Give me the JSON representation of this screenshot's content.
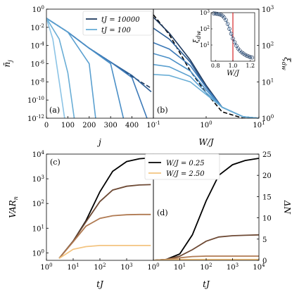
{
  "chart_data": [
    {
      "id": "a",
      "type": "line",
      "panel_label": "(a)",
      "xlabel": "j",
      "ylabel": "n̄_j",
      "xlim": [
        0,
        500
      ],
      "ylim": [
        1e-12,
        1
      ],
      "yscale": "log",
      "xticks": [
        0,
        100,
        200,
        300,
        400
      ],
      "yticks": [
        1,
        0.01,
        0.0001,
        1e-06,
        1e-08,
        1e-10,
        1e-12
      ],
      "ytick_labels": [
        "10^0",
        "10^-2",
        "10^-4",
        "10^-6",
        "10^-8",
        "10^-10",
        "10^-12"
      ],
      "legend": [
        {
          "label": "tJ = 10000",
          "color": "#1f3a5f"
        },
        {
          "label": "tJ = 100",
          "color": "#6aaed6"
        }
      ],
      "series": [
        {
          "color": "#1f3a5f",
          "dashed": true,
          "x": [
            0,
            100,
            200,
            300,
            400,
            490
          ],
          "y": [
            0.1,
            0.003,
            5e-05,
            1.5e-06,
            4e-08,
            2e-09
          ]
        },
        {
          "color": "#2a5d95",
          "x": [
            0,
            100,
            200,
            300,
            400,
            490
          ],
          "y": [
            0.1,
            0.003,
            5e-05,
            1.5e-06,
            5e-08,
            8e-10
          ]
        },
        {
          "color": "#3d7ab8",
          "x": [
            0,
            100,
            200,
            300,
            400,
            470
          ],
          "y": [
            0.1,
            0.003,
            5e-05,
            1.5e-06,
            3e-08,
            1e-12
          ]
        },
        {
          "color": "#4a8fc7",
          "x": [
            0,
            100,
            200,
            300,
            360
          ],
          "y": [
            0.1,
            0.003,
            5e-05,
            1e-06,
            1e-12
          ]
        },
        {
          "color": "#5ba0d0",
          "x": [
            0,
            100,
            200,
            230
          ],
          "y": [
            0.1,
            0.003,
            1e-06,
            1e-12
          ]
        },
        {
          "color": "#6aaed6",
          "x": [
            0,
            60,
            100,
            130
          ],
          "y": [
            0.1,
            0.0005,
            1e-07,
            1e-12
          ]
        },
        {
          "color": "#8cc4e6",
          "x": [
            0,
            30,
            60,
            85
          ],
          "y": [
            0.1,
            0.0005,
            1e-08,
            1e-12
          ]
        }
      ]
    },
    {
      "id": "b",
      "type": "line",
      "panel_label": "(b)",
      "xlabel": "W/J",
      "ylabel": "ξ_dw",
      "xscale": "log",
      "yscale": "log",
      "xlim": [
        0.1,
        10
      ],
      "ylim": [
        1,
        1000
      ],
      "xtick_labels": [
        "10^-1",
        "10^0",
        "10^1"
      ],
      "ytick_labels": [
        "10^0",
        "10^1",
        "10^2",
        "10^3"
      ],
      "series": [
        {
          "color": "#000000",
          "dashed": true,
          "x": [
            0.1,
            0.2,
            0.5,
            1,
            2,
            5,
            10
          ],
          "y": [
            700,
            200,
            20,
            5,
            1.5,
            1,
            1
          ]
        },
        {
          "color": "#1f3a5f",
          "x": [
            0.1,
            0.2,
            0.5,
            1,
            2,
            5,
            10
          ],
          "y": [
            600,
            220,
            40,
            8,
            2,
            1.1,
            1
          ]
        },
        {
          "color": "#2a5d95",
          "x": [
            0.1,
            0.2,
            0.5,
            1,
            2,
            5,
            10
          ],
          "y": [
            300,
            150,
            35,
            7,
            2,
            1.1,
            1
          ]
        },
        {
          "color": "#3d7ab8",
          "x": [
            0.1,
            0.2,
            0.5,
            1,
            2,
            5,
            10
          ],
          "y": [
            120,
            80,
            28,
            7,
            2,
            1.1,
            1
          ]
        },
        {
          "color": "#4a8fc7",
          "x": [
            0.1,
            0.2,
            0.5,
            1,
            2,
            5,
            10
          ],
          "y": [
            60,
            45,
            20,
            6,
            2,
            1.1,
            1
          ]
        },
        {
          "color": "#5ba0d0",
          "x": [
            0.1,
            0.2,
            0.5,
            1,
            2,
            5,
            10
          ],
          "y": [
            30,
            26,
            14,
            5,
            2,
            1.1,
            1
          ]
        },
        {
          "color": "#6aaed6",
          "x": [
            0.1,
            0.2,
            0.5,
            1,
            2,
            5,
            10
          ],
          "y": [
            16,
            15,
            10,
            4.5,
            2,
            1.1,
            1
          ]
        }
      ],
      "inset": {
        "xlabel": "W/J",
        "ylabel": "ξ_dw",
        "xlim": [
          0.75,
          1.25
        ],
        "ylim": [
          1,
          1000
        ],
        "xtick_labels": [
          "0.8",
          "1.0",
          "1.2"
        ],
        "ytick_labels": [
          "10^1",
          "10^2",
          "10^3"
        ],
        "vline_x": 1.0,
        "points": {
          "x": [
            0.78,
            0.8,
            0.82,
            0.84,
            0.86,
            0.88,
            0.9,
            0.92,
            0.94,
            0.96,
            0.98,
            1.0,
            1.02,
            1.04,
            1.06,
            1.08,
            1.1,
            1.12,
            1.14,
            1.16,
            1.18,
            1.2,
            1.22
          ],
          "y": [
            900,
            880,
            850,
            800,
            750,
            650,
            500,
            350,
            200,
            100,
            50,
            25,
            15,
            9,
            6,
            4.5,
            3.5,
            3,
            2.5,
            2.2,
            2,
            1.8,
            1.7
          ]
        }
      }
    },
    {
      "id": "c",
      "type": "line",
      "panel_label": "(c)",
      "xlabel": "tJ",
      "ylabel": "VAR_n",
      "xscale": "log",
      "yscale": "log",
      "xlim": [
        1,
        10000
      ],
      "ylim": [
        0.5,
        10000
      ],
      "xtick_labels": [
        "10^0",
        "10^1",
        "10^2",
        "10^3"
      ],
      "ytick_labels": [
        "10^0",
        "10^1",
        "10^2",
        "10^3",
        "10^4"
      ],
      "series": [
        {
          "color": "#000000",
          "x": [
            3,
            10,
            30,
            100,
            300,
            1000,
            3000,
            8000
          ],
          "y": [
            0.6,
            3,
            20,
            300,
            2000,
            5000,
            6500,
            7000
          ]
        },
        {
          "color": "#6e4a35",
          "x": [
            3,
            10,
            30,
            100,
            300,
            1000,
            3000,
            8000
          ],
          "y": [
            0.6,
            3,
            18,
            120,
            350,
            500,
            560,
            580
          ]
        },
        {
          "color": "#b07a52",
          "x": [
            3,
            10,
            30,
            100,
            300,
            1000,
            3000,
            8000
          ],
          "y": [
            0.6,
            2.8,
            12,
            25,
            32,
            35,
            36,
            36
          ]
        },
        {
          "color": "#f3c480",
          "x": [
            3,
            10,
            30,
            100,
            300,
            1000,
            3000,
            8000
          ],
          "y": [
            0.6,
            1.4,
            1.8,
            2,
            2,
            2,
            2,
            2
          ]
        }
      ]
    },
    {
      "id": "d",
      "type": "line",
      "panel_label": "(d)",
      "xlabel": "tJ",
      "ylabel": "ΔN",
      "xscale": "log",
      "xlim": [
        1,
        10000
      ],
      "ylim": [
        0,
        25
      ],
      "xtick_labels": [
        "10^0",
        "10^1",
        "10^2",
        "10^3",
        "10^4"
      ],
      "yticks": [
        0,
        5,
        10,
        15,
        20,
        25
      ],
      "legend": [
        {
          "label": "W/J = 0.25",
          "color": "#000000"
        },
        {
          "label": "W/J = 2.50",
          "color": "#f3c480"
        }
      ],
      "series": [
        {
          "color": "#000000",
          "x": [
            1,
            3,
            10,
            30,
            100,
            300,
            1000,
            3000,
            10000
          ],
          "y": [
            0,
            0.2,
            1.5,
            6,
            14,
            20,
            22.5,
            23.5,
            24
          ]
        },
        {
          "color": "#6e4a35",
          "x": [
            1,
            3,
            10,
            30,
            100,
            300,
            1000,
            3000,
            10000
          ],
          "y": [
            0,
            0.2,
            1,
            2.5,
            4.5,
            5.5,
            5.8,
            5.9,
            6
          ]
        },
        {
          "color": "#b07a52",
          "x": [
            1,
            3,
            10,
            30,
            100,
            300,
            1000,
            3000,
            10000
          ],
          "y": [
            0,
            0.2,
            0.6,
            0.9,
            1,
            1,
            1,
            1,
            1
          ]
        },
        {
          "color": "#f3c480",
          "x": [
            1,
            3,
            10,
            30,
            100,
            300,
            1000,
            3000,
            10000
          ],
          "y": [
            0,
            0.1,
            0.2,
            0.2,
            0.2,
            0.2,
            0.2,
            0.2,
            0.2
          ]
        }
      ]
    }
  ]
}
